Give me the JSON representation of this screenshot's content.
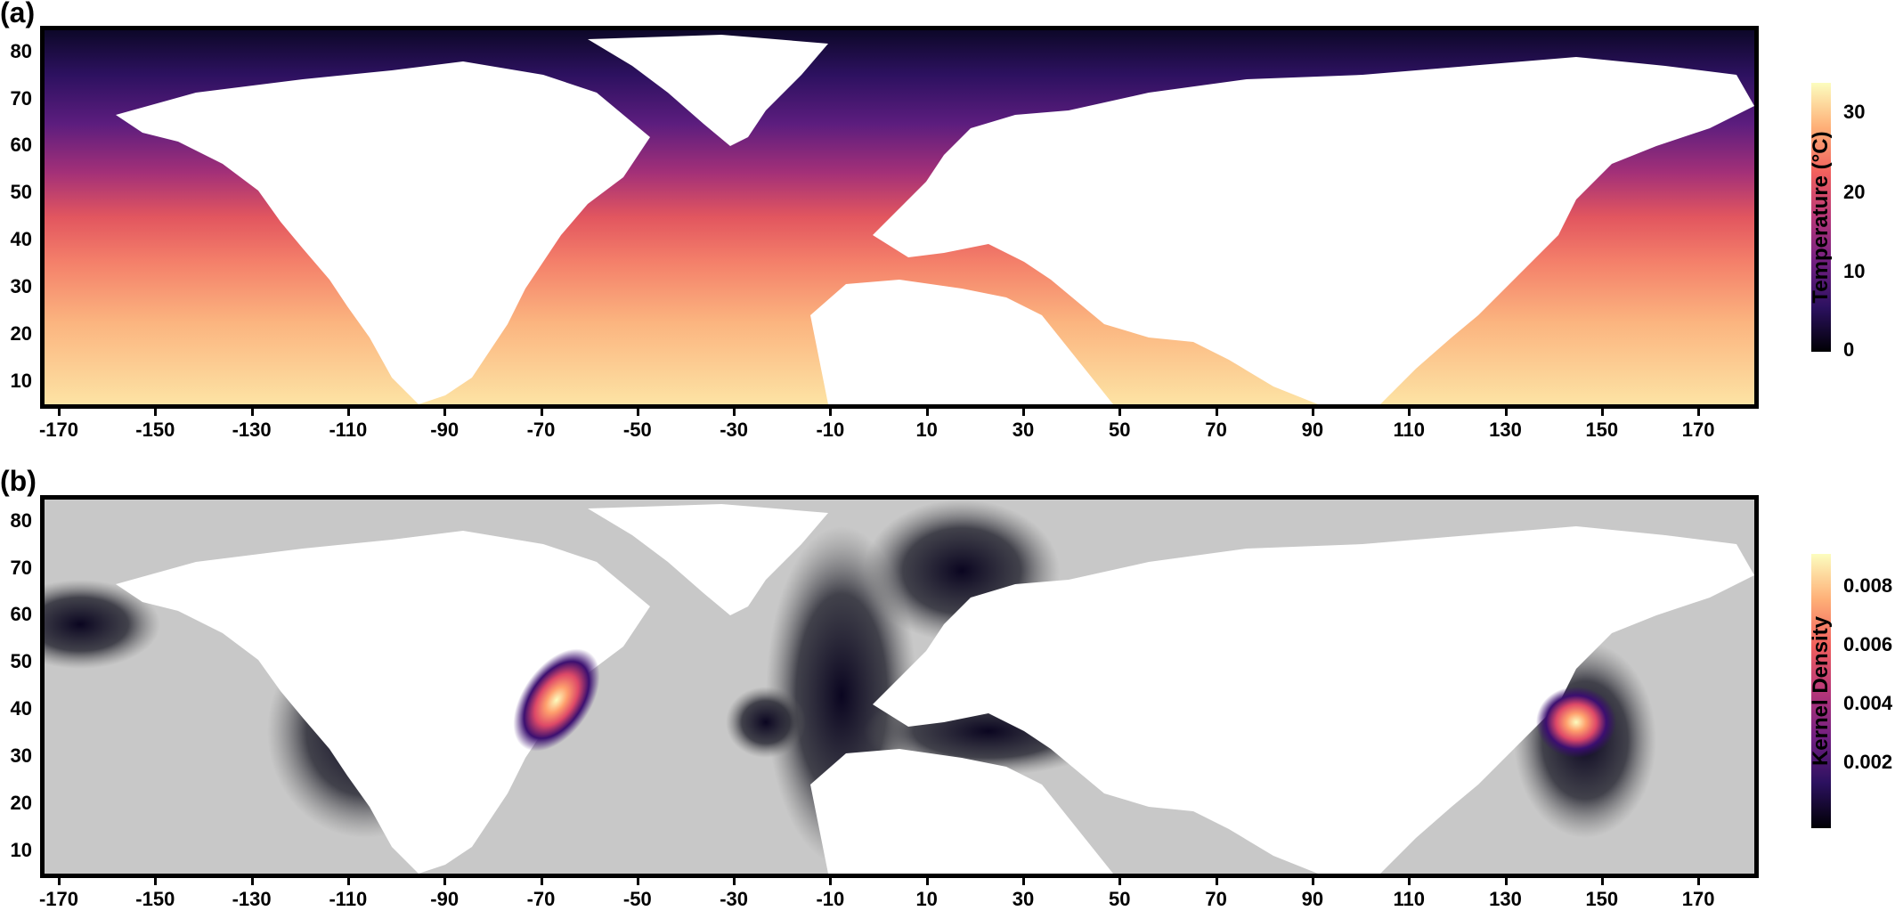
{
  "panels": [
    {
      "label": "(a)",
      "legend_title": "Temperature (°C)",
      "legend_ticks": [
        "0",
        "10",
        "20",
        "30"
      ],
      "legend_colors": [
        "#000004",
        "#3b0f70",
        "#8c2981",
        "#de4968",
        "#fe9f6d",
        "#fcfdbf"
      ]
    },
    {
      "label": "(b)",
      "legend_title": "Kernel Density",
      "legend_ticks": [
        "0.002",
        "0.004",
        "0.006",
        "0.008"
      ],
      "legend_colors": [
        "#000004",
        "#3b0f70",
        "#8c2981",
        "#de4968",
        "#fe9f6d",
        "#fcfdbf"
      ]
    }
  ],
  "y_ticks": [
    "80",
    "70",
    "60",
    "50",
    "40",
    "30",
    "20",
    "10"
  ],
  "x_ticks": [
    "-170",
    "-150",
    "-130",
    "-110",
    "-90",
    "-70",
    "-50",
    "-30",
    "-10",
    "10",
    "30",
    "50",
    "70",
    "90",
    "110",
    "130",
    "150",
    "170"
  ],
  "colors": {
    "land": "#ffffff",
    "ocean_background_b": "#c8c8c8",
    "frame": "#000000"
  }
}
